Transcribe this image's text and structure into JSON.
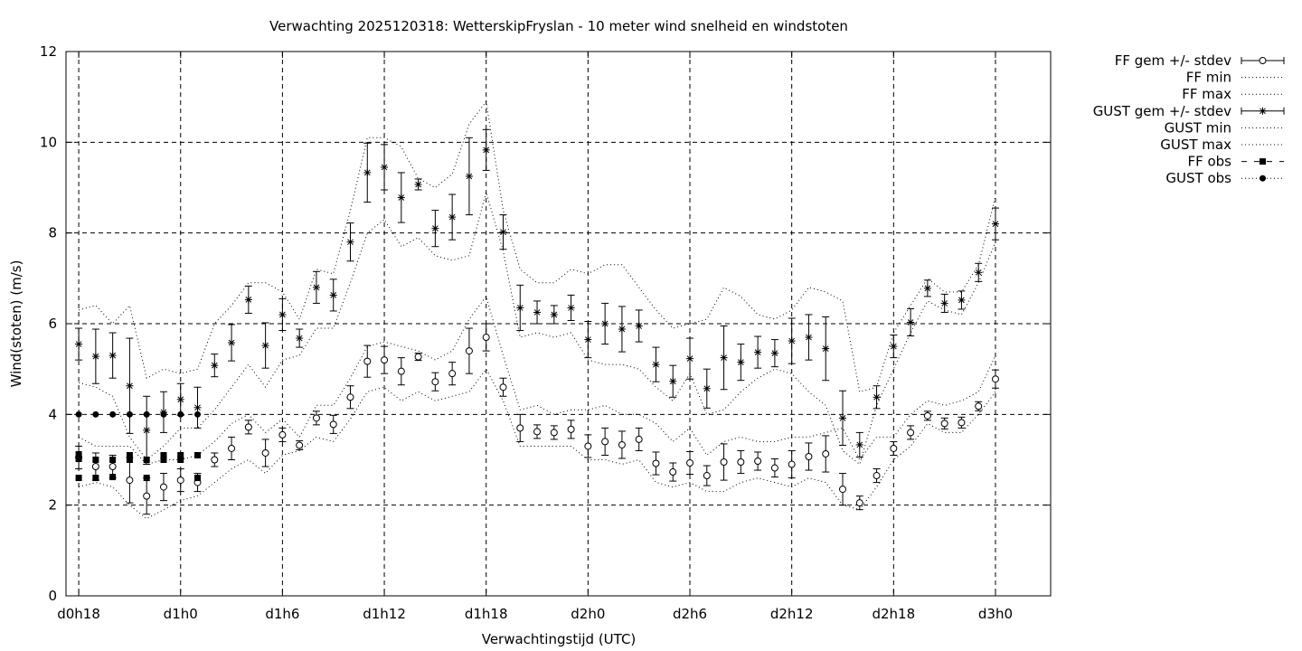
{
  "chart_data": {
    "type": "line",
    "title": "Verwachting 2025120318: WetterskipFryslan - 10 meter wind snelheid en windstoten",
    "xlabel": "Verwachtingstijd (UTC)",
    "ylabel": "Wind(stoten) (m/s)",
    "ylim": [
      0,
      12
    ],
    "xlim": [
      -0.75,
      57.25
    ],
    "grid": true,
    "legend_position": "outside-right-top",
    "x_unit": "hours since d0h18",
    "y_ticks": [
      "0",
      "2",
      "4",
      "6",
      "8",
      "10",
      "12"
    ],
    "x_ticks": [
      {
        "x": 0,
        "label": "d0h18"
      },
      {
        "x": 6,
        "label": "d1h0"
      },
      {
        "x": 12,
        "label": "d1h6"
      },
      {
        "x": 18,
        "label": "d1h12"
      },
      {
        "x": 24,
        "label": "d1h18"
      },
      {
        "x": 30,
        "label": "d2h0"
      },
      {
        "x": 36,
        "label": "d2h6"
      },
      {
        "x": 42,
        "label": "d2h12"
      },
      {
        "x": 48,
        "label": "d2h18"
      },
      {
        "x": 54,
        "label": "d3h0"
      }
    ],
    "x": [
      0,
      1,
      2,
      3,
      4,
      5,
      6,
      7,
      8,
      9,
      10,
      11,
      12,
      13,
      14,
      15,
      16,
      17,
      18,
      19,
      20,
      21,
      22,
      23,
      24,
      25,
      26,
      27,
      28,
      29,
      30,
      31,
      32,
      33,
      34,
      35,
      36,
      37,
      38,
      39,
      40,
      41,
      42,
      43,
      44,
      45,
      46,
      47,
      48,
      49,
      50,
      51,
      52,
      53,
      54
    ],
    "series": [
      {
        "name": "FF gem +/- stdev",
        "style": "errorbar-circle",
        "values": [
          3.05,
          2.85,
          2.85,
          2.55,
          2.2,
          2.4,
          2.55,
          2.5,
          3.0,
          3.25,
          3.72,
          3.15,
          3.55,
          3.32,
          3.92,
          3.78,
          4.38,
          5.17,
          5.2,
          4.95,
          5.27,
          4.72,
          4.9,
          5.4,
          5.7,
          4.6,
          3.7,
          3.62,
          3.6,
          3.67,
          3.3,
          3.4,
          3.33,
          3.45,
          2.92,
          2.73,
          2.93,
          2.65,
          2.95,
          2.95,
          2.97,
          2.82,
          2.9,
          3.07,
          3.13,
          2.35,
          2.05,
          2.65,
          3.25,
          3.6,
          3.97,
          3.8,
          3.82,
          4.18,
          4.78
        ],
        "stdev": [
          0.25,
          0.3,
          0.25,
          0.5,
          0.4,
          0.3,
          0.25,
          0.2,
          0.15,
          0.25,
          0.15,
          0.3,
          0.15,
          0.1,
          0.15,
          0.2,
          0.25,
          0.35,
          0.3,
          0.3,
          0.08,
          0.2,
          0.25,
          0.5,
          0.3,
          0.2,
          0.3,
          0.15,
          0.15,
          0.2,
          0.25,
          0.3,
          0.3,
          0.25,
          0.25,
          0.2,
          0.25,
          0.22,
          0.4,
          0.25,
          0.2,
          0.2,
          0.3,
          0.3,
          0.4,
          0.35,
          0.15,
          0.15,
          0.15,
          0.15,
          0.1,
          0.12,
          0.12,
          0.1,
          0.2
        ]
      },
      {
        "name": "FF min",
        "style": "dotted",
        "values": [
          2.4,
          2.5,
          2.4,
          2.0,
          1.7,
          1.9,
          2.1,
          2.2,
          2.5,
          2.8,
          3.0,
          2.7,
          3.1,
          3.2,
          3.5,
          3.4,
          3.9,
          4.5,
          4.6,
          4.3,
          4.5,
          4.3,
          4.4,
          4.5,
          5.0,
          4.3,
          3.3,
          3.3,
          3.3,
          3.3,
          3.0,
          3.0,
          2.9,
          3.0,
          2.5,
          2.4,
          2.5,
          2.3,
          2.3,
          2.5,
          2.6,
          2.5,
          2.4,
          2.6,
          2.5,
          2.0,
          1.9,
          2.4,
          3.0,
          3.3,
          3.8,
          3.6,
          3.6,
          4.0,
          4.5
        ]
      },
      {
        "name": "FF max",
        "style": "dotted",
        "values": [
          3.5,
          3.3,
          3.3,
          3.3,
          2.9,
          3.0,
          3.0,
          3.1,
          3.4,
          3.8,
          4.0,
          3.6,
          3.9,
          3.5,
          4.2,
          4.2,
          4.8,
          5.5,
          5.6,
          5.5,
          5.4,
          5.2,
          5.4,
          6.1,
          6.6,
          5.3,
          4.1,
          4.2,
          4.0,
          4.1,
          4.1,
          4.2,
          4.0,
          4.0,
          3.8,
          3.4,
          3.7,
          3.1,
          3.4,
          3.5,
          3.4,
          3.4,
          3.5,
          3.5,
          3.6,
          3.7,
          3.0,
          3.5,
          3.5,
          4.0,
          4.3,
          4.2,
          4.3,
          4.5,
          5.3
        ]
      },
      {
        "name": "GUST gem +/- stdev",
        "style": "errorbar-star",
        "values": [
          5.55,
          5.28,
          5.3,
          4.63,
          3.65,
          4.05,
          4.33,
          4.15,
          5.08,
          5.58,
          6.53,
          5.52,
          6.2,
          5.68,
          6.8,
          6.63,
          7.8,
          9.33,
          9.45,
          8.78,
          9.07,
          8.1,
          8.35,
          9.25,
          9.83,
          8.02,
          6.35,
          6.25,
          6.2,
          6.35,
          5.65,
          6.0,
          5.88,
          5.95,
          5.1,
          4.73,
          5.23,
          4.57,
          5.25,
          5.15,
          5.37,
          5.35,
          5.62,
          5.7,
          5.45,
          3.92,
          3.33,
          4.38,
          5.5,
          6.03,
          6.78,
          6.45,
          6.52,
          7.13,
          8.2
        ],
        "stdev": [
          0.35,
          0.6,
          0.5,
          1.05,
          0.75,
          0.45,
          0.35,
          0.45,
          0.25,
          0.4,
          0.3,
          0.5,
          0.35,
          0.2,
          0.35,
          0.35,
          0.42,
          0.65,
          0.5,
          0.55,
          0.12,
          0.4,
          0.5,
          0.85,
          0.45,
          0.38,
          0.5,
          0.25,
          0.2,
          0.28,
          0.4,
          0.45,
          0.5,
          0.35,
          0.38,
          0.35,
          0.45,
          0.43,
          0.7,
          0.4,
          0.35,
          0.3,
          0.5,
          0.5,
          0.7,
          0.6,
          0.27,
          0.25,
          0.25,
          0.3,
          0.18,
          0.2,
          0.2,
          0.2,
          0.35
        ]
      },
      {
        "name": "GUST min",
        "style": "dotted",
        "values": [
          4.7,
          4.6,
          4.4,
          3.5,
          3.0,
          3.3,
          3.7,
          3.7,
          4.1,
          4.6,
          5.1,
          4.6,
          5.2,
          5.3,
          5.9,
          5.9,
          6.9,
          8.0,
          8.3,
          7.7,
          7.9,
          7.5,
          7.4,
          7.5,
          8.9,
          7.6,
          5.7,
          5.8,
          5.7,
          5.8,
          5.2,
          5.1,
          5.1,
          5.0,
          4.6,
          4.3,
          4.9,
          4.0,
          4.1,
          4.5,
          4.8,
          5.0,
          4.9,
          4.5,
          4.2,
          3.2,
          2.9,
          4.2,
          5.0,
          5.8,
          6.5,
          6.3,
          6.2,
          6.9,
          7.8
        ]
      },
      {
        "name": "GUST max",
        "style": "dotted",
        "values": [
          6.3,
          6.4,
          6.0,
          6.4,
          4.8,
          5.0,
          4.9,
          5.0,
          6.0,
          6.4,
          6.9,
          6.9,
          6.7,
          6.1,
          7.2,
          7.1,
          8.5,
          10.1,
          10.1,
          9.9,
          9.2,
          9.0,
          9.3,
          10.4,
          10.9,
          8.5,
          7.2,
          6.9,
          6.9,
          7.2,
          7.1,
          7.3,
          7.3,
          6.8,
          6.3,
          5.9,
          6.0,
          6.1,
          6.8,
          6.6,
          6.2,
          6.1,
          6.3,
          6.8,
          6.7,
          6.5,
          4.5,
          4.6,
          5.8,
          6.4,
          7.0,
          6.7,
          6.7,
          7.3,
          8.8
        ]
      },
      {
        "name": "FF obs",
        "style": "square-dashed",
        "x": [
          0,
          0,
          0,
          1,
          1,
          2,
          2,
          3,
          3,
          4,
          4,
          5,
          5,
          6,
          6,
          7,
          7
        ],
        "values": [
          3.12,
          3.02,
          2.6,
          3.0,
          2.6,
          3.0,
          2.62,
          3.1,
          3.0,
          3.0,
          2.6,
          3.1,
          3.0,
          3.1,
          3.0,
          3.1,
          2.6
        ]
      },
      {
        "name": "GUST obs",
        "style": "circle-dotted",
        "x": [
          0,
          1,
          2,
          3,
          4,
          5,
          6,
          7
        ],
        "values": [
          4.0,
          4.0,
          4.0,
          4.0,
          4.0,
          4.0,
          4.0,
          4.0
        ]
      }
    ]
  }
}
